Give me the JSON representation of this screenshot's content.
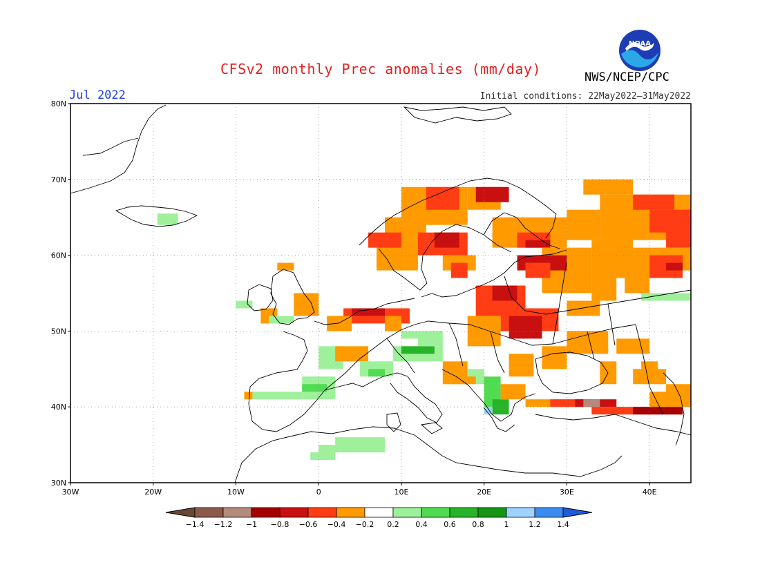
{
  "header": {
    "title": "CFSv2 monthly Prec anomalies (mm/day)",
    "month": "Jul 2022",
    "initial_conditions": "Initial conditions: 22May2022–31May2022",
    "agency": "NWS/NCEP/CPC",
    "logo_text": "NOAA"
  },
  "map": {
    "lat_labels": [
      "80N",
      "70N",
      "60N",
      "50N",
      "40N",
      "30N"
    ],
    "lon_labels": [
      "30W",
      "20W",
      "10W",
      "0",
      "10E",
      "20E",
      "30E",
      "40E"
    ],
    "extent": {
      "lon": [
        -30,
        45
      ],
      "lat": [
        30,
        80
      ]
    }
  },
  "colorbar": {
    "labels": [
      "-1.4",
      "-1.2",
      "-1",
      "-0.8",
      "-0.6",
      "-0.4",
      "-0.2",
      "0.2",
      "0.4",
      "0.6",
      "0.8",
      "1",
      "1.2",
      "1.4"
    ],
    "colors": [
      "#6b4636",
      "#8c5a4a",
      "#b48a7c",
      "#a50000",
      "#c81010",
      "#ff3c14",
      "#ff9a00",
      "#ffffff",
      "#9ef09a",
      "#50dc50",
      "#28b428",
      "#149614",
      "#9ed2ff",
      "#3c8cf0",
      "#1e5adc"
    ]
  }
}
